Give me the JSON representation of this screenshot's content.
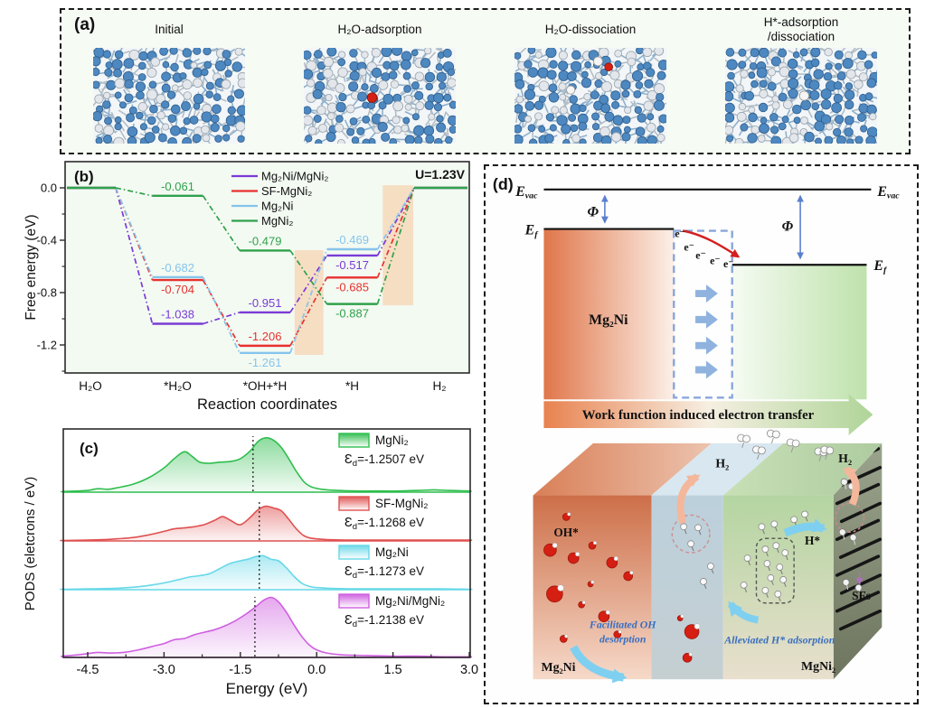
{
  "panel_a": {
    "tag": "(a)",
    "structures": [
      {
        "label": "Initial",
        "label2": "",
        "marker": "none"
      },
      {
        "label": "H₂O-adsorption",
        "label2": "",
        "marker": "red-atom"
      },
      {
        "label": "H₂O-dissociation",
        "label2": "",
        "marker": "oh-dissociated"
      },
      {
        "label": "H*-adsorption",
        "label2": "/dissociation",
        "marker": "h-atom"
      }
    ],
    "atom_colors": {
      "ni": "#4E88C0",
      "mg": "#E3E7EB",
      "o": "#D42114",
      "h": "#F5F5F5"
    }
  },
  "chart_data": [
    {
      "id": "b",
      "type": "line",
      "panel_tag": "(b)",
      "title": "U=1.23V",
      "xlabel": "Reaction coordinates",
      "ylabel": "Free energy (eV)",
      "categories": [
        "H₂O",
        "*H₂O",
        "*OH+*H",
        "*H",
        "H₂"
      ],
      "ytick_labels": [
        "0.0",
        "-0.4",
        "-0.8",
        "-1.2"
      ],
      "ytick_values": [
        0,
        -0.4,
        -0.8,
        -1.2
      ],
      "ylim": [
        -1.414,
        0.2
      ],
      "legend_position": "top-center",
      "grid": false,
      "series": [
        {
          "name": "Mg₂Ni/MgNi₂",
          "color": "#7A3BD6",
          "values": [
            0,
            -1.038,
            -0.951,
            -0.517,
            0
          ],
          "label_pos": [
            null,
            "above",
            "above",
            "below",
            null
          ]
        },
        {
          "name": "SF-MgNi₂",
          "color": "#E8312E",
          "values": [
            0,
            -0.704,
            -1.206,
            -0.685,
            0
          ],
          "label_pos": [
            null,
            "below",
            "above",
            "below",
            null
          ]
        },
        {
          "name": "Mg₂Ni",
          "color": "#85C4EC",
          "values": [
            0,
            -0.682,
            -1.261,
            -0.469,
            0
          ],
          "label_pos": [
            null,
            "above",
            "below",
            "above",
            null
          ]
        },
        {
          "name": "MgNi₂",
          "color": "#2FA14B",
          "values": [
            0,
            -0.061,
            -0.479,
            -0.887,
            0
          ],
          "label_pos": [
            null,
            "above",
            "above",
            "below",
            null
          ]
        }
      ],
      "highlight_color": "#F6DEC3",
      "highlights": [
        {
          "c0": 2.34,
          "c1": 2.67,
          "y0": -0.476,
          "y1": -1.276
        },
        {
          "c0": 3.35,
          "c1": 3.7,
          "y0": 0.02,
          "y1": -0.897
        }
      ]
    },
    {
      "id": "c",
      "type": "area",
      "panel_tag": "(c)",
      "xlabel": "Energy (eV)",
      "ylabel": "PODS (eletcrons / eV)",
      "xtick_labels": [
        "-4.5",
        "-3.0",
        "-1.5",
        "0.0",
        "1.5",
        "3.0"
      ],
      "xtick_values": [
        -4.5,
        -3.0,
        -1.5,
        0.0,
        1.5,
        3.0
      ],
      "xlim": [
        -4.98,
        3.02
      ],
      "ed_symbol": "Ɛ",
      "ed_sub": "d",
      "rows": [
        {
          "name": "MgNi₂",
          "ed_text": "=-1.2507 eV",
          "ed_value": -1.2507,
          "color": "#2FBE4E",
          "points": [
            [
              -5.0,
              0.01
            ],
            [
              -4.7,
              0.02
            ],
            [
              -4.5,
              0.03
            ],
            [
              -4.3,
              0.06
            ],
            [
              -4.1,
              0.05
            ],
            [
              -3.9,
              0.08
            ],
            [
              -3.6,
              0.14
            ],
            [
              -3.3,
              0.25
            ],
            [
              -3.0,
              0.42
            ],
            [
              -2.8,
              0.58
            ],
            [
              -2.6,
              0.7
            ],
            [
              -2.45,
              0.62
            ],
            [
              -2.3,
              0.52
            ],
            [
              -2.1,
              0.5
            ],
            [
              -1.9,
              0.52
            ],
            [
              -1.7,
              0.53
            ],
            [
              -1.5,
              0.58
            ],
            [
              -1.3,
              0.72
            ],
            [
              -1.15,
              0.88
            ],
            [
              -1.0,
              0.94
            ],
            [
              -0.85,
              0.9
            ],
            [
              -0.7,
              0.78
            ],
            [
              -0.55,
              0.58
            ],
            [
              -0.4,
              0.36
            ],
            [
              -0.25,
              0.18
            ],
            [
              -0.1,
              0.09
            ],
            [
              0.1,
              0.05
            ],
            [
              0.4,
              0.03
            ],
            [
              0.8,
              0.02
            ],
            [
              1.2,
              0.02
            ],
            [
              1.6,
              0.02
            ],
            [
              2.0,
              0.03
            ],
            [
              2.3,
              0.04
            ],
            [
              2.6,
              0.03
            ],
            [
              3.0,
              0.02
            ]
          ]
        },
        {
          "name": "SF-MgNi₂",
          "ed_text": "=-1.1268 eV",
          "ed_value": -1.1268,
          "color": "#E05050",
          "points": [
            [
              -5.0,
              0.01
            ],
            [
              -4.5,
              0.02
            ],
            [
              -4.2,
              0.03
            ],
            [
              -3.9,
              0.05
            ],
            [
              -3.6,
              0.08
            ],
            [
              -3.3,
              0.14
            ],
            [
              -3.0,
              0.22
            ],
            [
              -2.8,
              0.28
            ],
            [
              -2.6,
              0.3
            ],
            [
              -2.4,
              0.33
            ],
            [
              -2.2,
              0.38
            ],
            [
              -2.0,
              0.48
            ],
            [
              -1.85,
              0.56
            ],
            [
              -1.7,
              0.48
            ],
            [
              -1.55,
              0.38
            ],
            [
              -1.45,
              0.4
            ],
            [
              -1.3,
              0.55
            ],
            [
              -1.15,
              0.72
            ],
            [
              -1.0,
              0.8
            ],
            [
              -0.85,
              0.76
            ],
            [
              -0.7,
              0.7
            ],
            [
              -0.55,
              0.5
            ],
            [
              -0.4,
              0.28
            ],
            [
              -0.25,
              0.12
            ],
            [
              -0.1,
              0.06
            ],
            [
              0.2,
              0.03
            ],
            [
              0.6,
              0.02
            ],
            [
              1.0,
              0.02
            ],
            [
              1.5,
              0.02
            ],
            [
              2.0,
              0.02
            ],
            [
              2.5,
              0.02
            ],
            [
              3.0,
              0.02
            ]
          ]
        },
        {
          "name": "Mg₂Ni",
          "ed_text": "=-1.1273 eV",
          "ed_value": -1.1273,
          "color": "#67D8E8",
          "points": [
            [
              -5.0,
              0.01
            ],
            [
              -4.5,
              0.02
            ],
            [
              -4.0,
              0.03
            ],
            [
              -3.6,
              0.06
            ],
            [
              -3.3,
              0.1
            ],
            [
              -3.0,
              0.16
            ],
            [
              -2.7,
              0.24
            ],
            [
              -2.5,
              0.3
            ],
            [
              -2.3,
              0.33
            ],
            [
              -2.1,
              0.38
            ],
            [
              -1.9,
              0.5
            ],
            [
              -1.7,
              0.62
            ],
            [
              -1.5,
              0.68
            ],
            [
              -1.35,
              0.72
            ],
            [
              -1.2,
              0.78
            ],
            [
              -1.05,
              0.8
            ],
            [
              -0.9,
              0.72
            ],
            [
              -0.75,
              0.68
            ],
            [
              -0.6,
              0.52
            ],
            [
              -0.45,
              0.32
            ],
            [
              -0.3,
              0.16
            ],
            [
              -0.15,
              0.08
            ],
            [
              0.0,
              0.05
            ],
            [
              0.3,
              0.03
            ],
            [
              0.7,
              0.02
            ],
            [
              1.2,
              0.02
            ],
            [
              1.8,
              0.02
            ],
            [
              2.4,
              0.02
            ],
            [
              3.0,
              0.01
            ]
          ]
        },
        {
          "name": "Mg₂Ni/MgNi₂",
          "ed_text": "=-1.2138 eV",
          "ed_value": -1.2138,
          "color": "#CF5FE0",
          "points": [
            [
              -5.0,
              0.02
            ],
            [
              -4.7,
              0.04
            ],
            [
              -4.5,
              0.06
            ],
            [
              -4.3,
              0.08
            ],
            [
              -4.1,
              0.07
            ],
            [
              -3.8,
              0.08
            ],
            [
              -3.5,
              0.12
            ],
            [
              -3.2,
              0.18
            ],
            [
              -3.0,
              0.22
            ],
            [
              -2.8,
              0.28
            ],
            [
              -2.6,
              0.3
            ],
            [
              -2.4,
              0.36
            ],
            [
              -2.2,
              0.4
            ],
            [
              -2.0,
              0.44
            ],
            [
              -1.8,
              0.5
            ],
            [
              -1.6,
              0.58
            ],
            [
              -1.4,
              0.68
            ],
            [
              -1.2,
              0.8
            ],
            [
              -1.05,
              0.9
            ],
            [
              -0.9,
              0.95
            ],
            [
              -0.75,
              0.88
            ],
            [
              -0.6,
              0.72
            ],
            [
              -0.45,
              0.52
            ],
            [
              -0.3,
              0.34
            ],
            [
              -0.15,
              0.2
            ],
            [
              0.0,
              0.12
            ],
            [
              0.2,
              0.07
            ],
            [
              0.5,
              0.04
            ],
            [
              1.0,
              0.03
            ],
            [
              1.5,
              0.02
            ],
            [
              2.0,
              0.02
            ],
            [
              2.5,
              0.01
            ],
            [
              3.0,
              0.01
            ]
          ]
        }
      ]
    }
  ],
  "panel_d": {
    "tag": "(d)",
    "e_vac_main": "E",
    "e_vac_sub": "vac",
    "e_f_main": "E",
    "e_f_sub": "f",
    "phi": "Φ",
    "electron": "e⁻",
    "left_material": "Mg₂Ni",
    "right_material": "MgNi₂",
    "banner": "Work function induced electron transfer",
    "bottom": {
      "oh": "OH*",
      "h2": "H₂",
      "hstar": "H*",
      "sfs": "SFs",
      "left_material": "Mg₂Ni",
      "right_material": "MgNi₂",
      "caption_left_1": "Facilitated OH",
      "caption_left_2": "desorption",
      "caption_right": "Alleviated H* adsorption"
    }
  }
}
